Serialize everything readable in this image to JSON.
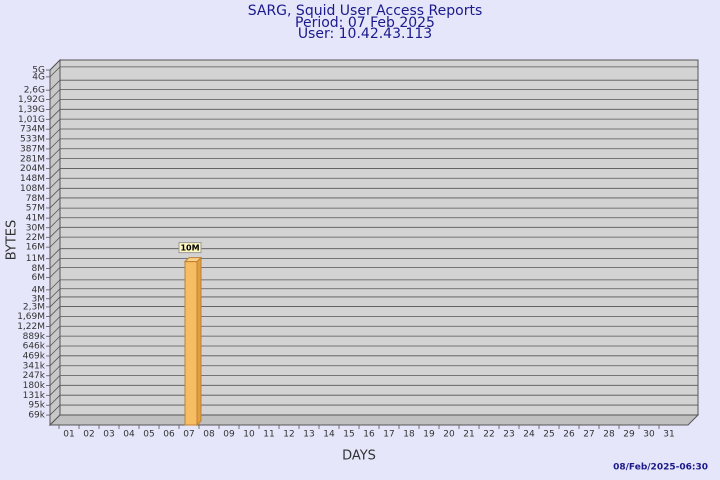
{
  "chart_data": {
    "type": "bar",
    "title": "SARG, Squid User Access Reports",
    "subtitle": [
      "Period: 07 Feb 2025",
      "User: 10.42.43.113"
    ],
    "x_label": "DAYS",
    "y_label": "BYTES",
    "footer": "08/Feb/2025-06:30",
    "categories": [
      "01",
      "02",
      "03",
      "04",
      "05",
      "06",
      "07",
      "08",
      "09",
      "10",
      "11",
      "12",
      "13",
      "14",
      "15",
      "16",
      "17",
      "18",
      "19",
      "20",
      "21",
      "22",
      "23",
      "24",
      "25",
      "26",
      "27",
      "28",
      "29",
      "30",
      "31"
    ],
    "values": [
      null,
      null,
      null,
      null,
      null,
      null,
      10000000,
      null,
      null,
      null,
      null,
      null,
      null,
      null,
      null,
      null,
      null,
      null,
      null,
      null,
      null,
      null,
      null,
      null,
      null,
      null,
      null,
      null,
      null,
      null,
      null
    ],
    "value_labels": [
      null,
      null,
      null,
      null,
      null,
      null,
      "10M",
      null,
      null,
      null,
      null,
      null,
      null,
      null,
      null,
      null,
      null,
      null,
      null,
      null,
      null,
      null,
      null,
      null,
      null,
      null,
      null,
      null,
      null,
      null,
      null
    ],
    "color": "#f7bd63",
    "log_scale": true,
    "grid": true,
    "ylim": [
      50000,
      5000000000
    ],
    "yticks": [
      {
        "value": 69000,
        "label": "69k"
      },
      {
        "value": 95000,
        "label": "95k"
      },
      {
        "value": 131000,
        "label": "131k"
      },
      {
        "value": 180000,
        "label": "180k"
      },
      {
        "value": 247000,
        "label": "247k"
      },
      {
        "value": 341000,
        "label": "341k"
      },
      {
        "value": 469000,
        "label": "469k"
      },
      {
        "value": 646000,
        "label": "646k"
      },
      {
        "value": 889000,
        "label": "889k"
      },
      {
        "value": 1220000,
        "label": "1,22M"
      },
      {
        "value": 1690000,
        "label": "1,69M"
      },
      {
        "value": 2300000,
        "label": "2,3M"
      },
      {
        "value": 3000000,
        "label": "3M"
      },
      {
        "value": 4000000,
        "label": "4M"
      },
      {
        "value": 6000000,
        "label": "6M"
      },
      {
        "value": 8000000,
        "label": "8M"
      },
      {
        "value": 11000000,
        "label": "11M"
      },
      {
        "value": 16000000,
        "label": "16M"
      },
      {
        "value": 22000000,
        "label": "22M"
      },
      {
        "value": 30000000,
        "label": "30M"
      },
      {
        "value": 41000000,
        "label": "41M"
      },
      {
        "value": 57000000,
        "label": "57M"
      },
      {
        "value": 78000000,
        "label": "78M"
      },
      {
        "value": 108000000,
        "label": "108M"
      },
      {
        "value": 148000000,
        "label": "148M"
      },
      {
        "value": 204000000,
        "label": "204M"
      },
      {
        "value": 281000000,
        "label": "281M"
      },
      {
        "value": 387000000,
        "label": "387M"
      },
      {
        "value": 533000000,
        "label": "533M"
      },
      {
        "value": 734000000,
        "label": "734M"
      },
      {
        "value": 1010000000,
        "label": "1,01G"
      },
      {
        "value": 1390000000,
        "label": "1,39G"
      },
      {
        "value": 1920000000,
        "label": "1,92G"
      },
      {
        "value": 2600000000,
        "label": "2,6G"
      },
      {
        "value": 4000000000,
        "label": "4G"
      },
      {
        "value": 5000000000,
        "label": "5G"
      }
    ]
  }
}
